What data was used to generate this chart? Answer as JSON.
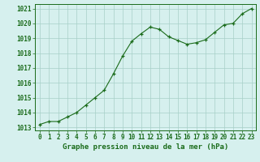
{
  "x": [
    0,
    1,
    2,
    3,
    4,
    5,
    6,
    7,
    8,
    9,
    10,
    11,
    12,
    13,
    14,
    15,
    16,
    17,
    18,
    19,
    20,
    21,
    22,
    23
  ],
  "y": [
    1013.2,
    1013.4,
    1013.4,
    1013.7,
    1014.0,
    1014.5,
    1015.0,
    1015.5,
    1016.6,
    1017.8,
    1018.8,
    1019.3,
    1019.75,
    1019.6,
    1019.1,
    1018.85,
    1018.6,
    1018.7,
    1018.9,
    1019.4,
    1019.9,
    1020.0,
    1020.65,
    1021.0
  ],
  "line_color": "#1a6b1a",
  "marker": "+",
  "background_color": "#d6f0ee",
  "grid_color": "#a8cfc8",
  "xlabel": "Graphe pression niveau de la mer (hPa)",
  "xlabel_color": "#1a6b1a",
  "tick_color": "#1a6b1a",
  "ylim": [
    1012.8,
    1021.3
  ],
  "xlim": [
    -0.5,
    23.5
  ],
  "yticks": [
    1013,
    1014,
    1015,
    1016,
    1017,
    1018,
    1019,
    1020,
    1021
  ],
  "xticks": [
    0,
    1,
    2,
    3,
    4,
    5,
    6,
    7,
    8,
    9,
    10,
    11,
    12,
    13,
    14,
    15,
    16,
    17,
    18,
    19,
    20,
    21,
    22,
    23
  ],
  "label_fontsize": 6.5,
  "tick_fontsize": 5.5
}
